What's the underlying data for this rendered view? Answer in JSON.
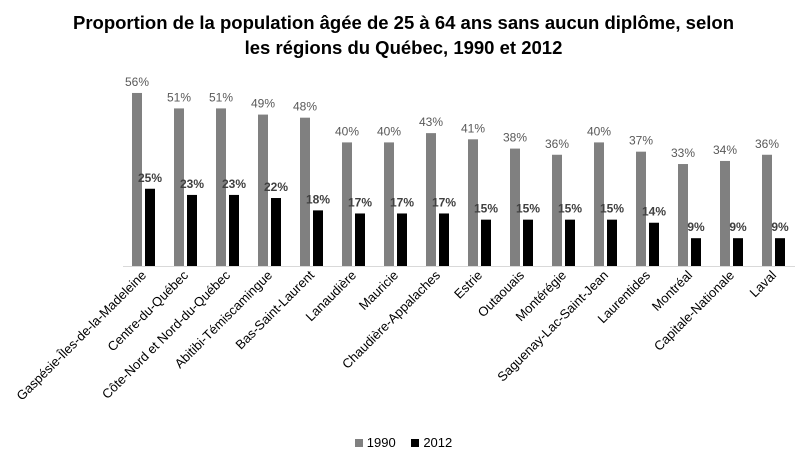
{
  "chart_data": {
    "type": "bar",
    "title_line1": "Proportion de la population âgée de 25 à 64 ans sans aucun diplôme, selon",
    "title_line2": "les régions du Québec, 1990 et 2012",
    "xlabel": "",
    "ylabel": "",
    "ylim": [
      0,
      60
    ],
    "grid": false,
    "legend_position": "bottom",
    "categories": [
      "Gaspésie-Îles-de-la-Madeleine",
      "Centre-du-Québec",
      "Côte-Nord et Nord-du-Québec",
      "Abitibi-Témiscamingue",
      "Bas-Saint-Laurent",
      "Lanaudière",
      "Mauricie",
      "Chaudière-Appalaches",
      "Estrie",
      "Outaouais",
      "Montérégie",
      "Saguenay-Lac-Saint-Jean",
      "Laurentides",
      "Montréal",
      "Capitale-Nationale",
      "Laval"
    ],
    "series": [
      {
        "name": "1990",
        "color": "#808080",
        "values": [
          56,
          51,
          51,
          49,
          48,
          40,
          40,
          43,
          41,
          38,
          36,
          40,
          37,
          33,
          34,
          36
        ],
        "labels": [
          "56%",
          "51%",
          "51%",
          "49%",
          "48%",
          "40%",
          "40%",
          "43%",
          "41%",
          "38%",
          "36%",
          "40%",
          "37%",
          "33%",
          "34%",
          "36%"
        ]
      },
      {
        "name": "2012",
        "color": "#000000",
        "values": [
          25,
          23,
          23,
          22,
          18,
          17,
          17,
          17,
          15,
          15,
          15,
          15,
          14,
          9,
          9,
          9
        ],
        "labels": [
          "25%",
          "23%",
          "23%",
          "22%",
          "18%",
          "17%",
          "17%",
          "17%",
          "15%",
          "15%",
          "15%",
          "15%",
          "14%",
          "9%",
          "9%",
          "9%"
        ]
      }
    ]
  }
}
